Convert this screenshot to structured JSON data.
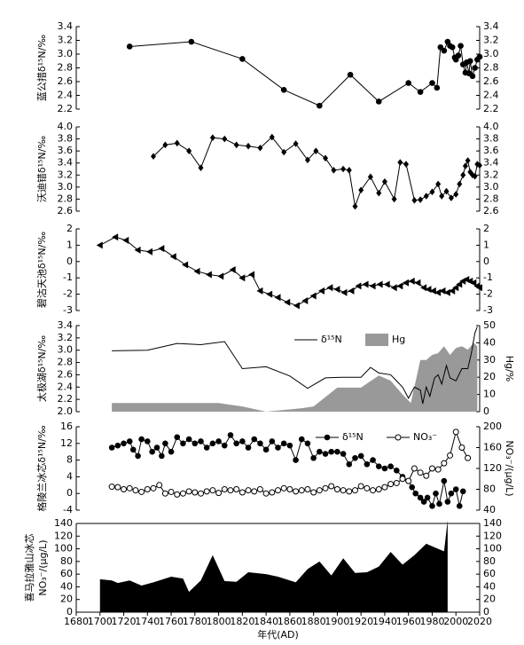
{
  "chart_data": [
    {
      "type": "line",
      "ylabel": "蓝公措δ¹⁵N/‰",
      "xlim": [
        1680,
        2020
      ],
      "ylim": [
        2.2,
        3.4
      ],
      "yticks": [
        2.2,
        2.4,
        2.6,
        2.8,
        {
          "value": 3,
          "label": "3.0"
        },
        3.2,
        3.4
      ],
      "mirror": true,
      "series": [
        {
          "color": "#000",
          "marker": "circle",
          "x": [
            1725,
            1777,
            1820,
            1855,
            1885,
            1911,
            1935,
            1960,
            1970,
            1980,
            1984,
            1987,
            1990,
            1993,
            1995,
            1997,
            1999,
            2000,
            2002,
            2004,
            2006,
            2008,
            2009,
            2011,
            2012,
            2014,
            2016,
            2018,
            2020
          ],
          "values": [
            3.11,
            3.18,
            2.93,
            2.48,
            2.25,
            2.7,
            2.31,
            2.58,
            2.45,
            2.58,
            2.51,
            3.1,
            3.05,
            3.18,
            3.12,
            3.1,
            2.95,
            2.92,
            2.98,
            3.12,
            2.85,
            2.73,
            2.88,
            2.72,
            2.9,
            2.68,
            2.8,
            2.92,
            2.96
          ]
        }
      ]
    },
    {
      "type": "line",
      "ylabel": "沃迪错δ¹⁵N/‰",
      "xlim": [
        1680,
        2020
      ],
      "ylim": [
        2.6,
        4
      ],
      "yticks": [
        2.6,
        2.8,
        {
          "value": 3,
          "label": "3.0"
        },
        3.2,
        3.4,
        3.6,
        3.8,
        {
          "value": 4,
          "label": "4.0"
        }
      ],
      "mirror": true,
      "series": [
        {
          "color": "#000",
          "marker": "diamond",
          "x": [
            1745,
            1755,
            1765,
            1775,
            1785,
            1795,
            1805,
            1815,
            1825,
            1835,
            1845,
            1855,
            1865,
            1875,
            1882,
            1890,
            1897,
            1905,
            1910,
            1915,
            1920,
            1928,
            1935,
            1940,
            1948,
            1953,
            1958,
            1965,
            1970,
            1975,
            1980,
            1985,
            1988,
            1992,
            1996,
            2000,
            2003,
            2006,
            2008,
            2010,
            2012,
            2014,
            2016,
            2018,
            2020
          ],
          "values": [
            3.51,
            3.7,
            3.73,
            3.6,
            3.32,
            3.82,
            3.8,
            3.7,
            3.68,
            3.65,
            3.83,
            3.58,
            3.72,
            3.45,
            3.6,
            3.48,
            3.28,
            3.3,
            3.28,
            2.68,
            2.95,
            3.17,
            2.9,
            3.09,
            2.8,
            3.41,
            3.38,
            2.78,
            2.79,
            2.85,
            2.92,
            3.05,
            2.85,
            2.93,
            2.82,
            2.88,
            3.05,
            3.2,
            3.35,
            3.44,
            3.25,
            3.2,
            3.18,
            3.38,
            3.36
          ]
        }
      ]
    },
    {
      "type": "line",
      "ylabel": "碧沽天池δ¹⁵N/‰",
      "xlim": [
        1680,
        2020
      ],
      "ylim": [
        -3,
        2
      ],
      "yticks": [
        -3,
        -2,
        -1,
        0,
        1,
        2
      ],
      "mirror": true,
      "series": [
        {
          "color": "#000",
          "marker": "triangle-left",
          "x": [
            1700,
            1713,
            1722,
            1732,
            1742,
            1752,
            1762,
            1772,
            1782,
            1792,
            1802,
            1812,
            1820,
            1828,
            1835,
            1843,
            1850,
            1858,
            1866,
            1873,
            1880,
            1887,
            1894,
            1900,
            1906,
            1912,
            1918,
            1924,
            1930,
            1936,
            1942,
            1948,
            1953,
            1958,
            1963,
            1968,
            1973,
            1977,
            1981,
            1985,
            1989,
            1993,
            1997,
            2000,
            2003,
            2006,
            2009,
            2012,
            2015,
            2018,
            2020
          ],
          "values": [
            1,
            1.5,
            1.3,
            0.7,
            0.6,
            0.8,
            0.3,
            -0.2,
            -0.6,
            -0.8,
            -0.9,
            -0.5,
            -1,
            -0.8,
            -1.8,
            -2,
            -2.2,
            -2.5,
            -2.7,
            -2.4,
            -2.1,
            -1.8,
            -1.6,
            -1.7,
            -1.9,
            -1.8,
            -1.5,
            -1.4,
            -1.5,
            -1.4,
            -1.4,
            -1.6,
            -1.5,
            -1.3,
            -1.2,
            -1.3,
            -1.6,
            -1.7,
            -1.8,
            -1.9,
            -1.8,
            -1.9,
            -1.8,
            -1.6,
            -1.4,
            -1.2,
            -1.1,
            -1.2,
            -1.3,
            -1.5,
            -1.6
          ]
        }
      ]
    },
    {
      "type": "combo",
      "ylabel": "太极湖δ¹⁵N/‰",
      "y2label": "Hg/%",
      "xlim": [
        1680,
        2020
      ],
      "ylim": [
        2,
        3.4
      ],
      "yticks": [
        {
          "value": 2,
          "label": "2.0"
        },
        2.2,
        2.4,
        2.6,
        2.8,
        {
          "value": 3,
          "label": "3.0"
        },
        3.2,
        3.4
      ],
      "y2lim": [
        0,
        50
      ],
      "y2ticks": [
        0,
        10,
        20,
        30,
        40,
        50
      ],
      "legend": true,
      "series": [
        {
          "name": "δ¹⁵N",
          "color": "#000",
          "kind": "line",
          "x": [
            1710,
            1740,
            1765,
            1785,
            1805,
            1820,
            1840,
            1860,
            1875,
            1890,
            1905,
            1920,
            1928,
            1935,
            1945,
            1950,
            1955,
            1960,
            1965,
            1970,
            1972,
            1975,
            1978,
            1982,
            1985,
            1988,
            1992,
            1995,
            2000,
            2005,
            2010,
            2013,
            2016,
            2018
          ],
          "values": [
            2.99,
            3,
            3.11,
            3.09,
            3.14,
            2.7,
            2.73,
            2.58,
            2.38,
            2.55,
            2.56,
            2.56,
            2.72,
            2.63,
            2.6,
            2.5,
            2.4,
            2.22,
            2.4,
            2.35,
            2.13,
            2.4,
            2.25,
            2.55,
            2.6,
            2.45,
            2.75,
            2.55,
            2.5,
            2.7,
            2.7,
            2.95,
            3.28,
            3.38
          ]
        },
        {
          "name": "Hg",
          "color": "#999",
          "kind": "area",
          "axis": "y2",
          "x": [
            1710,
            1800,
            1820,
            1840,
            1870,
            1880,
            1900,
            1920,
            1935,
            1945,
            1955,
            1962,
            1970,
            1975,
            1980,
            1985,
            1990,
            1995,
            2000,
            2005,
            2010,
            2015,
            2018
          ],
          "values": [
            5,
            5,
            3,
            0,
            2,
            3,
            14,
            14,
            21,
            18,
            10,
            5,
            30,
            30,
            33,
            34,
            38,
            33,
            37,
            38,
            36,
            40,
            38
          ]
        }
      ]
    },
    {
      "type": "combo",
      "ylabel": "格陵兰冰芯δ¹⁵N/‰",
      "y2label": "NO₃⁻/(μg/L)",
      "xlim": [
        1680,
        2020
      ],
      "ylim": [
        -4,
        16
      ],
      "yticks": [
        -4,
        0,
        4,
        8,
        12,
        16
      ],
      "y2lim": [
        40,
        200
      ],
      "y2ticks": [
        40,
        80,
        120,
        160,
        200
      ],
      "legend": true,
      "series": [
        {
          "name": "δ¹⁵N",
          "color": "#000",
          "kind": "line",
          "marker": "circle",
          "x": [
            1710,
            1715,
            1720,
            1725,
            1728,
            1732,
            1735,
            1740,
            1744,
            1748,
            1752,
            1755,
            1760,
            1765,
            1770,
            1775,
            1780,
            1785,
            1790,
            1795,
            1800,
            1805,
            1810,
            1815,
            1820,
            1825,
            1830,
            1835,
            1840,
            1845,
            1850,
            1855,
            1860,
            1865,
            1870,
            1875,
            1880,
            1885,
            1890,
            1895,
            1900,
            1905,
            1910,
            1915,
            1920,
            1925,
            1930,
            1935,
            1940,
            1945,
            1950,
            1955,
            1960,
            1963,
            1966,
            1970,
            1973,
            1976,
            1980,
            1983,
            1986,
            1990,
            1993,
            1996,
            2000,
            2003,
            2006
          ],
          "values": [
            11,
            11.5,
            12,
            12.5,
            10.5,
            9,
            13,
            12.5,
            10,
            11,
            9,
            12,
            10,
            13.5,
            12,
            13,
            12,
            12.5,
            11,
            12,
            12.5,
            11.5,
            14,
            12,
            12.5,
            11,
            13,
            12,
            10.5,
            12.5,
            11,
            12,
            11.5,
            8,
            13,
            12,
            8.5,
            10,
            9.5,
            10,
            10,
            9.5,
            7,
            8.5,
            9,
            7,
            8,
            6.5,
            6,
            6.5,
            5.5,
            4,
            3,
            1.5,
            0,
            -1,
            -2,
            -1,
            -3,
            0,
            -2.5,
            3,
            -2,
            0,
            1,
            -3,
            0.5
          ]
        },
        {
          "name": "NO₃⁻",
          "color": "#000",
          "kind": "line",
          "marker": "open-circle",
          "axis": "y2",
          "x": [
            1710,
            1715,
            1720,
            1725,
            1730,
            1735,
            1740,
            1745,
            1750,
            1755,
            1760,
            1765,
            1770,
            1775,
            1780,
            1785,
            1790,
            1795,
            1800,
            1805,
            1810,
            1815,
            1820,
            1825,
            1830,
            1835,
            1840,
            1845,
            1850,
            1855,
            1860,
            1865,
            1870,
            1875,
            1880,
            1885,
            1890,
            1895,
            1900,
            1905,
            1910,
            1915,
            1920,
            1925,
            1930,
            1935,
            1940,
            1945,
            1950,
            1955,
            1960,
            1965,
            1970,
            1975,
            1980,
            1985,
            1990,
            1995,
            2000,
            2005,
            2010
          ],
          "values": [
            85,
            84,
            80,
            82,
            78,
            75,
            80,
            82,
            88,
            72,
            75,
            70,
            72,
            76,
            74,
            72,
            76,
            78,
            73,
            80,
            78,
            80,
            74,
            78,
            76,
            80,
            72,
            74,
            78,
            82,
            80,
            76,
            78,
            80,
            74,
            78,
            82,
            86,
            80,
            78,
            76,
            78,
            86,
            82,
            78,
            80,
            84,
            90,
            92,
            100,
            96,
            120,
            112,
            106,
            120,
            118,
            130,
            145,
            190,
            160,
            140
          ]
        }
      ]
    },
    {
      "type": "area",
      "ylabel": [
        "喜马拉雅山冰芯",
        "NO₃⁻/(μg/L)"
      ],
      "xlim": [
        1680,
        2020
      ],
      "ylim": [
        0,
        140
      ],
      "yticks": [
        0,
        20,
        40,
        60,
        80,
        100,
        120,
        140
      ],
      "mirror": true,
      "xticks": [
        1680,
        1700,
        1720,
        1740,
        1760,
        1780,
        1800,
        1820,
        1840,
        1860,
        1880,
        1900,
        1920,
        1940,
        1960,
        1980,
        2000,
        2020
      ],
      "xlabel": "年代(AD)",
      "series": [
        {
          "color": "#000",
          "kind": "area",
          "x": [
            1700,
            1710,
            1715,
            1725,
            1735,
            1745,
            1760,
            1770,
            1775,
            1785,
            1795,
            1805,
            1815,
            1825,
            1840,
            1850,
            1865,
            1875,
            1885,
            1895,
            1905,
            1915,
            1925,
            1935,
            1945,
            1955,
            1965,
            1975,
            1985,
            1990,
            1993
          ],
          "values": [
            52,
            50,
            46,
            50,
            42,
            47,
            56,
            53,
            32,
            50,
            90,
            49,
            48,
            63,
            60,
            56,
            47,
            68,
            80,
            58,
            85,
            62,
            63,
            72,
            95,
            75,
            90,
            108,
            100,
            96,
            145
          ]
        }
      ]
    }
  ]
}
